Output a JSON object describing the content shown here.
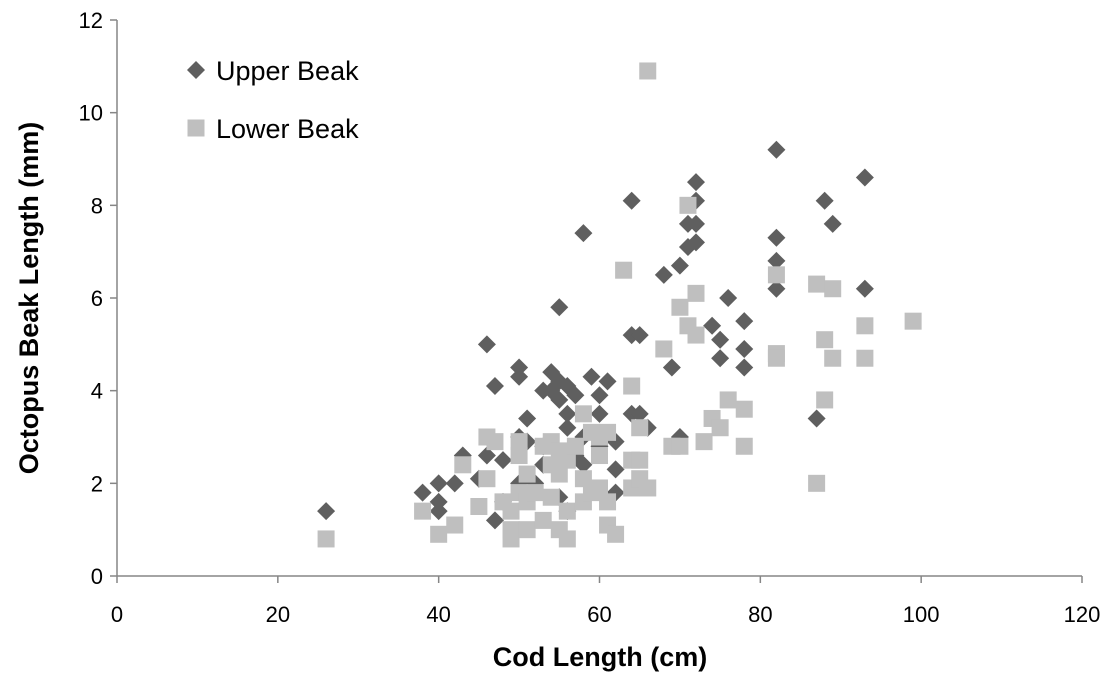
{
  "chart_data": {
    "type": "scatter",
    "x_label": "Cod Length (cm)",
    "y_label": "Octopus Beak Length (mm)",
    "xlim": [
      0,
      120
    ],
    "xticks": [
      0,
      20,
      40,
      60,
      80,
      100,
      120
    ],
    "ylim": [
      0,
      12
    ],
    "yticks": [
      0,
      2,
      4,
      6,
      8,
      10,
      12
    ],
    "legend": "upper left",
    "series": [
      {
        "name": "Upper Beak",
        "color": "#5f5f5f",
        "marker": "diamond",
        "x": [
          26,
          38,
          40,
          40,
          40,
          42,
          43,
          45,
          46,
          46,
          47,
          47,
          48,
          50,
          50,
          50,
          51,
          51,
          53,
          53,
          54,
          54,
          55,
          55,
          55,
          56,
          56,
          56,
          57,
          58,
          58,
          59,
          60,
          60,
          61,
          62,
          62,
          64,
          64,
          65,
          64,
          65,
          66,
          68,
          69,
          70,
          70,
          71,
          72,
          72,
          72,
          72,
          71,
          74,
          75,
          75,
          76,
          78,
          78,
          78,
          82,
          82,
          82,
          82,
          87,
          88,
          89,
          93,
          93,
          48,
          50,
          52,
          53,
          55,
          56,
          57,
          60,
          62,
          58
        ],
        "values": [
          1.4,
          1.8,
          2.0,
          1.6,
          1.4,
          2.0,
          2.6,
          2.1,
          5.0,
          2.6,
          4.1,
          1.2,
          2.5,
          4.5,
          4.3,
          3.0,
          3.4,
          2.9,
          4.0,
          2.4,
          4.4,
          4.0,
          5.8,
          4.2,
          3.8,
          3.2,
          4.1,
          3.5,
          3.9,
          7.4,
          2.4,
          4.3,
          3.9,
          3.5,
          4.2,
          2.3,
          2.9,
          8.1,
          5.2,
          5.2,
          3.5,
          3.5,
          3.2,
          6.5,
          4.5,
          6.7,
          3.0,
          7.1,
          8.5,
          8.1,
          7.6,
          7.2,
          7.6,
          5.4,
          5.1,
          4.7,
          6.0,
          5.5,
          4.9,
          4.5,
          9.2,
          7.3,
          6.8,
          6.2,
          3.4,
          8.1,
          7.6,
          8.6,
          6.2,
          1.6,
          2.0,
          2.0,
          2.8,
          1.7,
          1.4,
          2.6,
          2.8,
          1.8,
          3.0
        ]
      },
      {
        "name": "Lower Beak",
        "color": "#bfbfbf",
        "marker": "square",
        "x": [
          26,
          38,
          40,
          42,
          43,
          45,
          46,
          46,
          47,
          48,
          49,
          49,
          49,
          50,
          50,
          50,
          51,
          51,
          51,
          52,
          53,
          53,
          54,
          54,
          54,
          55,
          55,
          55,
          56,
          56,
          56,
          57,
          58,
          58,
          58,
          59,
          59,
          60,
          60,
          60,
          61,
          61,
          61,
          62,
          63,
          64,
          64,
          64,
          65,
          65,
          65,
          66,
          66,
          68,
          69,
          70,
          70,
          71,
          71,
          72,
          72,
          73,
          74,
          75,
          76,
          78,
          78,
          82,
          82,
          82,
          87,
          87,
          88,
          88,
          89,
          89,
          93,
          93,
          99
        ],
        "values": [
          0.8,
          1.4,
          0.9,
          1.1,
          2.4,
          1.5,
          3.0,
          2.1,
          2.9,
          1.6,
          0.8,
          1.0,
          1.4,
          1.8,
          2.6,
          2.9,
          1.0,
          2.2,
          1.6,
          1.8,
          1.2,
          2.8,
          2.9,
          2.4,
          1.7,
          1.0,
          2.2,
          2.7,
          0.8,
          1.4,
          2.5,
          2.8,
          3.5,
          2.1,
          1.6,
          3.1,
          1.8,
          3.0,
          2.6,
          1.9,
          3.1,
          1.6,
          1.1,
          0.9,
          6.6,
          4.1,
          2.5,
          1.9,
          3.2,
          2.5,
          2.1,
          10.9,
          1.9,
          4.9,
          2.8,
          5.8,
          2.8,
          8.0,
          5.4,
          6.1,
          5.2,
          2.9,
          3.4,
          3.2,
          3.8,
          3.6,
          2.8,
          6.5,
          4.8,
          4.7,
          6.3,
          2.0,
          5.1,
          3.8,
          6.2,
          4.7,
          5.4,
          4.7,
          5.5
        ]
      }
    ]
  }
}
